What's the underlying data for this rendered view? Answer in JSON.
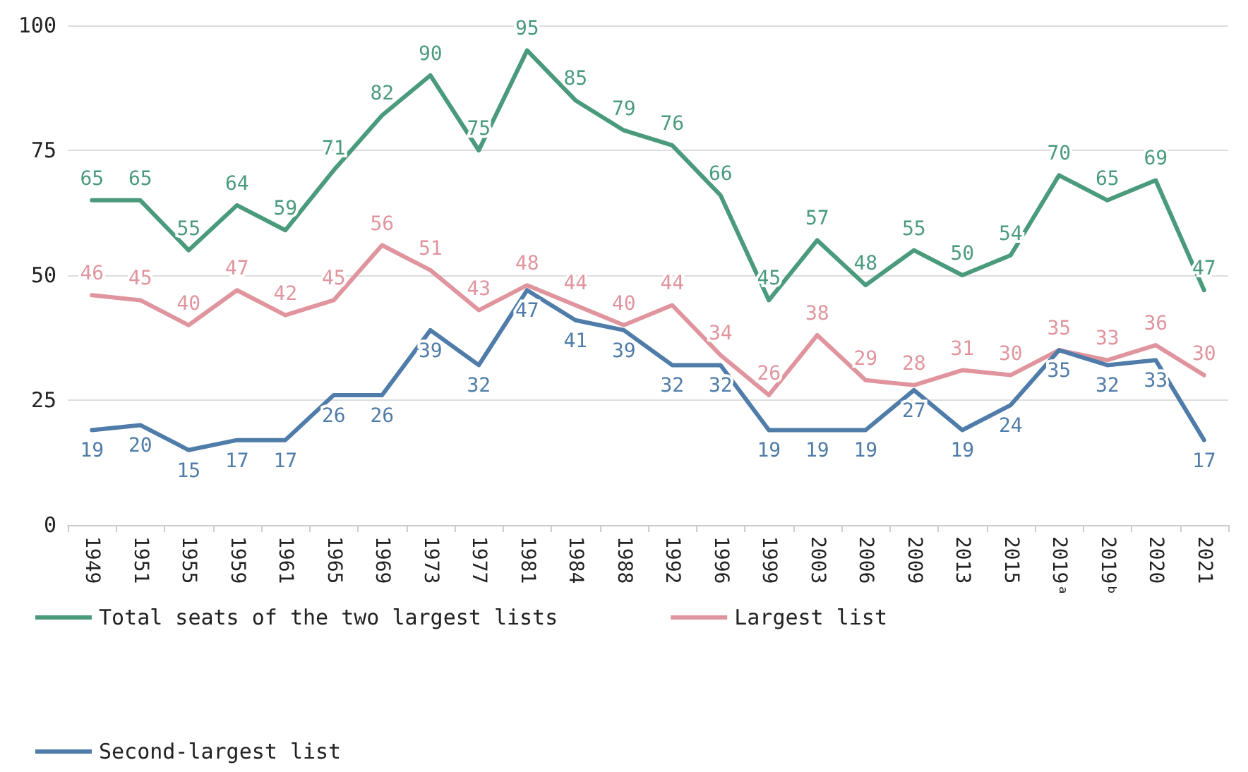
{
  "chart_data": {
    "type": "line",
    "categories": [
      "1949",
      "1951",
      "1955",
      "1959",
      "1961",
      "1965",
      "1969",
      "1973",
      "1977",
      "1981",
      "1984",
      "1988",
      "1992",
      "1996",
      "1999",
      "2003",
      "2006",
      "2009",
      "2013",
      "2015",
      "2019ᵃ",
      "2019ᵇ",
      "2020",
      "2021"
    ],
    "series": [
      {
        "name": "Total seats of the two largest lists",
        "color": "#4a9a7c",
        "values": [
          65,
          65,
          55,
          64,
          59,
          71,
          82,
          90,
          75,
          95,
          85,
          79,
          76,
          66,
          45,
          57,
          48,
          55,
          50,
          54,
          70,
          65,
          69,
          47
        ]
      },
      {
        "name": "Largest list",
        "color": "#e0959e",
        "values": [
          46,
          45,
          40,
          47,
          42,
          45,
          56,
          51,
          43,
          48,
          44,
          40,
          44,
          34,
          26,
          38,
          29,
          28,
          31,
          30,
          35,
          33,
          36,
          30
        ]
      },
      {
        "name": "Second-largest list",
        "color": "#4f7ca8",
        "values": [
          19,
          20,
          15,
          17,
          17,
          26,
          26,
          39,
          32,
          47,
          41,
          39,
          32,
          32,
          19,
          19,
          19,
          27,
          19,
          24,
          35,
          32,
          33,
          17
        ]
      }
    ],
    "ylim": [
      0,
      100
    ],
    "yticks": [
      0,
      25,
      50,
      75,
      100
    ],
    "grid": "y",
    "legend": "bottom",
    "data_labels": true,
    "marker": "none",
    "line_style": "solid"
  }
}
